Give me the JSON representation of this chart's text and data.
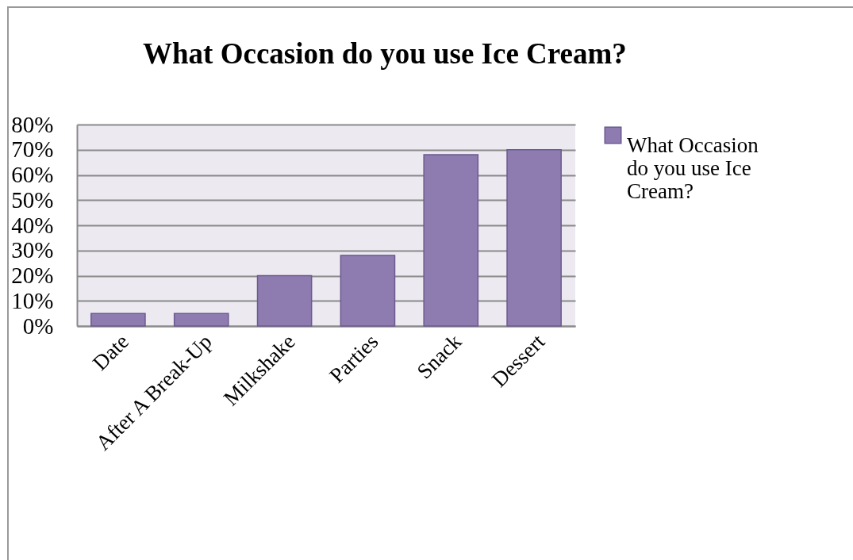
{
  "chart_data": {
    "type": "bar",
    "title": "What Occasion do you use Ice Cream?",
    "categories": [
      "Date",
      "After A Break-Up",
      "Milkshake",
      "Parties",
      "Snack",
      "Dessert"
    ],
    "series": [
      {
        "name": "What Occasion do you use Ice Cream?",
        "color": "#8e7cb0",
        "values": [
          5,
          5,
          20,
          28,
          68,
          70
        ]
      }
    ],
    "ylim": [
      0,
      80
    ],
    "yticks": [
      {
        "value": 0,
        "label": "0%"
      },
      {
        "value": 10,
        "label": "10%"
      },
      {
        "value": 20,
        "label": "20%"
      },
      {
        "value": 30,
        "label": "30%"
      },
      {
        "value": 40,
        "label": "40%"
      },
      {
        "value": 50,
        "label": "50%"
      },
      {
        "value": 60,
        "label": "60%"
      },
      {
        "value": 70,
        "label": "70%"
      },
      {
        "value": 80,
        "label": "80%"
      }
    ],
    "grid": "y",
    "legend": "right"
  }
}
